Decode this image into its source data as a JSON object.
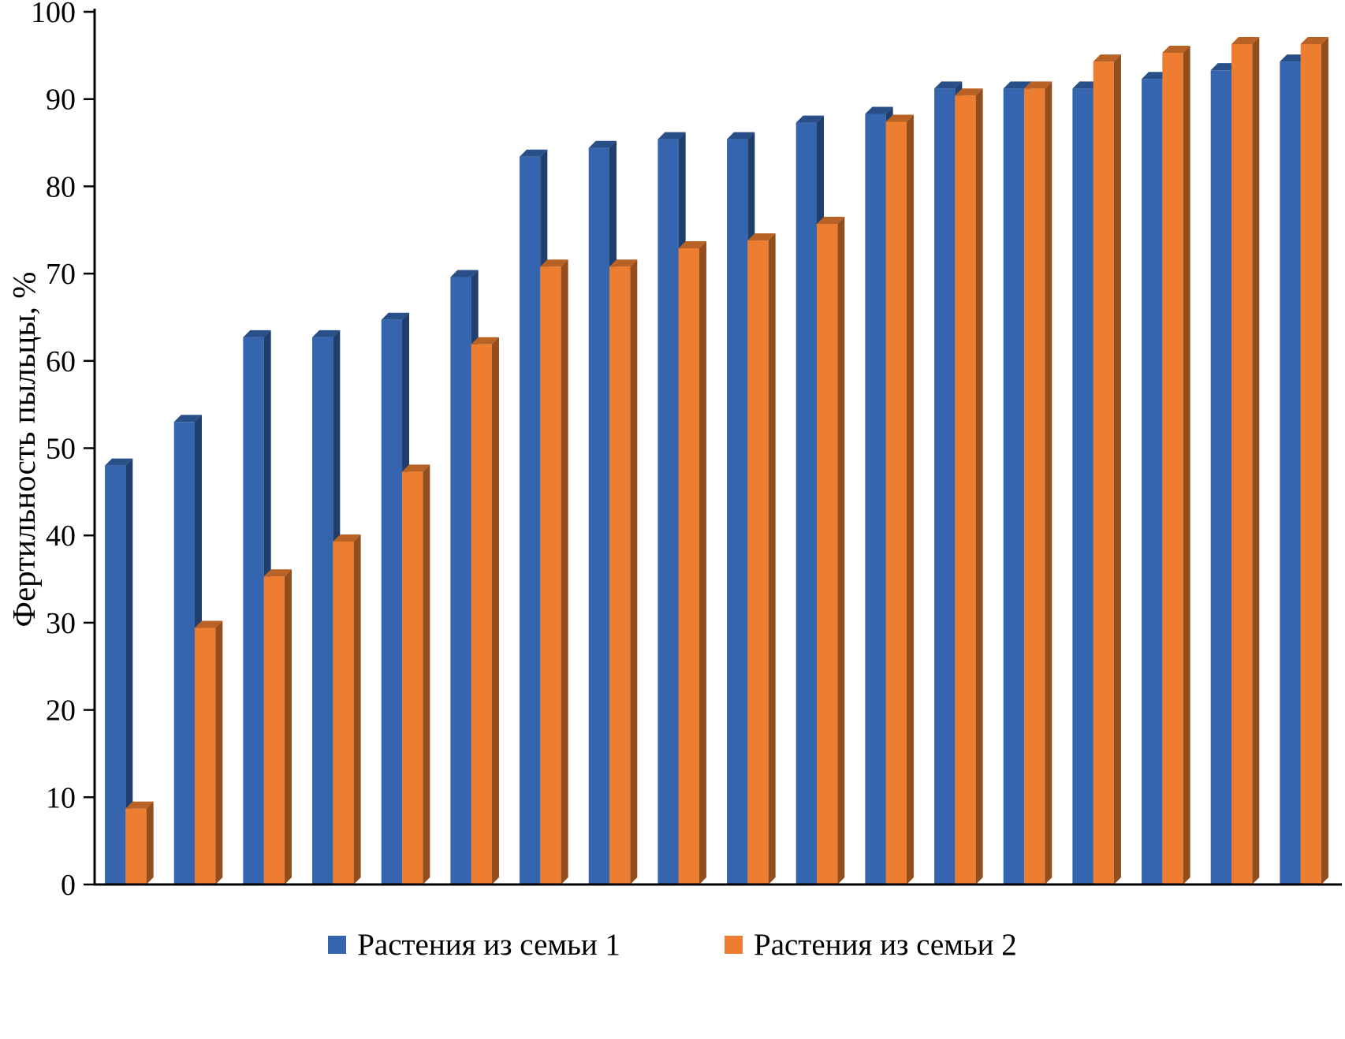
{
  "chart_data": {
    "type": "bar",
    "title": "",
    "xlabel": "",
    "ylabel": "Фертильность пыльцы, %",
    "ylim": [
      0,
      100
    ],
    "yticks": [
      0,
      10,
      20,
      30,
      40,
      50,
      60,
      70,
      80,
      90,
      100
    ],
    "grid": false,
    "legend_position": "bottom",
    "bar_effect": "3d",
    "series": [
      {
        "name": "Растения из семьи 1",
        "color": "#3565AE",
        "values": [
          48.0,
          53.0,
          62.7,
          62.7,
          64.7,
          69.6,
          83.4,
          84.4,
          85.4,
          85.4,
          87.3,
          88.3,
          91.2,
          91.2,
          91.2,
          92.3,
          93.3,
          94.3
        ]
      },
      {
        "name": "Растения из семьи 2",
        "color": "#ED7D31",
        "values": [
          8.7,
          29.4,
          35.3,
          39.3,
          47.3,
          61.9,
          70.8,
          70.8,
          72.9,
          73.8,
          75.7,
          87.4,
          90.4,
          91.2,
          94.3,
          95.3,
          96.3,
          96.3
        ]
      }
    ]
  }
}
